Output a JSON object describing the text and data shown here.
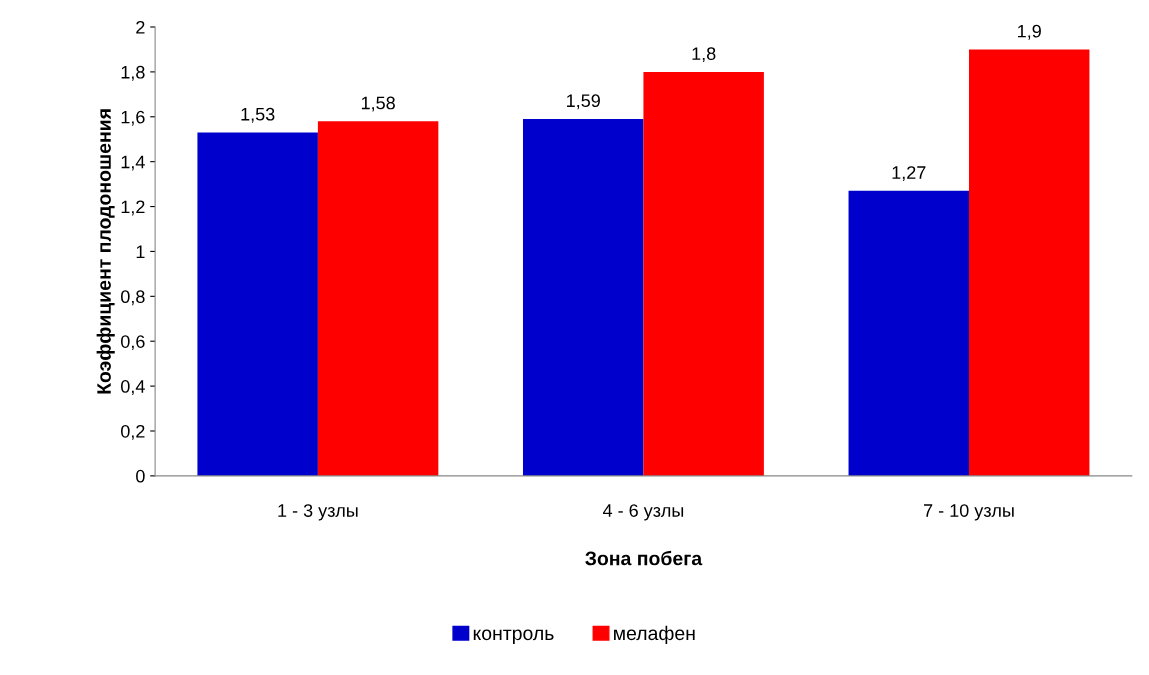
{
  "chart_data": {
    "type": "bar",
    "xlabel": "Зона побега",
    "ylabel": "Коэффициент плодоношения",
    "categories": [
      "1 - 3 узлы",
      "4 - 6 узлы",
      "7 - 10 узлы"
    ],
    "series": [
      {
        "name": "контроль",
        "color": "#0000cc",
        "values": [
          1.53,
          1.59,
          1.27
        ],
        "value_labels": [
          "1,53",
          "1,59",
          "1,27"
        ]
      },
      {
        "name": "мелафен",
        "color": "#ff0000",
        "values": [
          1.58,
          1.8,
          1.9
        ],
        "value_labels": [
          "1,58",
          "1,8",
          "1,9"
        ]
      }
    ],
    "ylim": [
      0,
      2
    ],
    "yticks": [
      0,
      {
        "value": 0.2,
        "label": "0,2"
      },
      {
        "value": 0.4,
        "label": "0,4"
      },
      {
        "value": 0.6,
        "label": "0,6"
      },
      {
        "value": 0.8,
        "label": "0,8"
      },
      1,
      {
        "value": 1.2,
        "label": "1,2"
      },
      {
        "value": 1.4,
        "label": "1,4"
      },
      {
        "value": 1.6,
        "label": "1,6"
      },
      {
        "value": 1.8,
        "label": "1,8"
      },
      2
    ],
    "grid": false,
    "legend": "bottom"
  }
}
